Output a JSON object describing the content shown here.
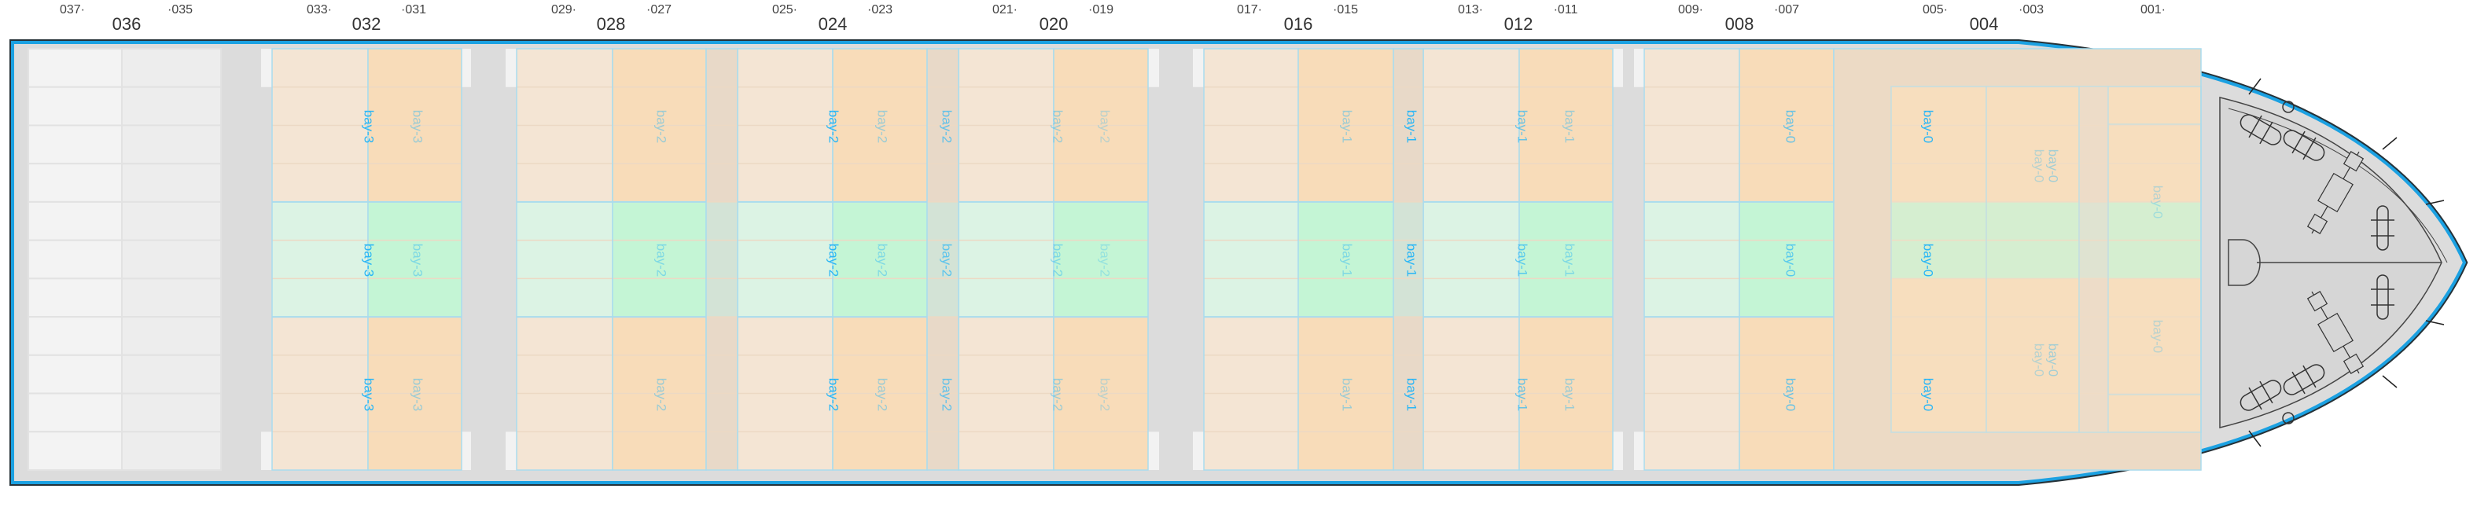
{
  "top_labels": {
    "frames": [
      "037·",
      "·035",
      "033·",
      "·031",
      "029·",
      "·027",
      "025·",
      "·023",
      "021·",
      "·019",
      "017·",
      "·015",
      "013·",
      "·011",
      "009·",
      "·007",
      "005·",
      "·003",
      "001·"
    ],
    "bays": [
      "036",
      "032",
      "028",
      "024",
      "020",
      "016",
      "012",
      "008",
      "004"
    ]
  },
  "bay_labels": [
    {
      "text": "bay-3",
      "emphasis": "strong"
    },
    {
      "text": "bay-3",
      "emphasis": "light"
    },
    {
      "text": "bay-2",
      "emphasis": "light"
    },
    {
      "text": "bay-2",
      "emphasis": "strong"
    },
    {
      "text": "bay-2",
      "emphasis": "light"
    },
    {
      "text": "bay-2",
      "emphasis": "medium"
    },
    {
      "text": "bay-2",
      "emphasis": "light"
    },
    {
      "text": "bay-2",
      "emphasis": "faint"
    },
    {
      "text": "bay-1",
      "emphasis": "light"
    },
    {
      "text": "bay-1",
      "emphasis": "strong"
    },
    {
      "text": "bay-1",
      "emphasis": "medium"
    },
    {
      "text": "bay-1",
      "emphasis": "light"
    },
    {
      "text": "bay-0",
      "emphasis": "medium"
    },
    {
      "text": "bay-0",
      "emphasis": "strong"
    }
  ],
  "bow_labels": {
    "double": "bay-0",
    "single": "bay-0"
  },
  "colors": {
    "hull_stroke": "#1ba1e2",
    "deck": "#dcdcdc",
    "slot_peach_left": "#f4e5d4",
    "slot_peach_right": "#f8dcb9",
    "slot_green_left": "#dcf3e4",
    "slot_green_right": "#c4f5d5",
    "slot_border": "#a9dcee",
    "label_blue": "#29b6f6"
  }
}
